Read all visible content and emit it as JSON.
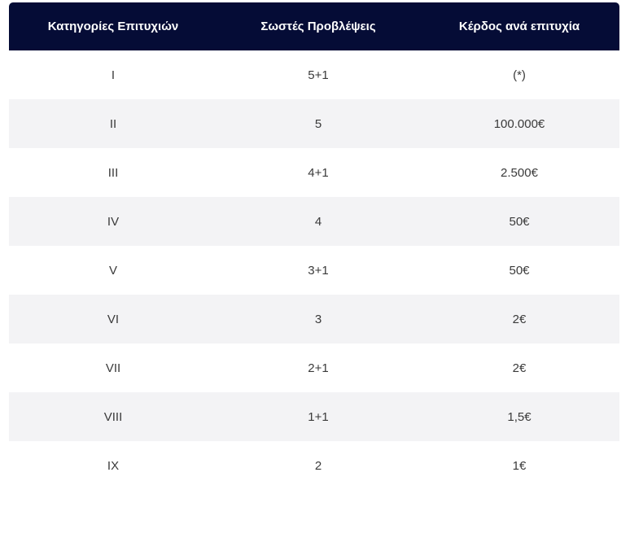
{
  "table": {
    "headers": [
      "Κατηγορίες Επιτυχιών",
      "Σωστές Προβλέψεις",
      "Κέρδος ανά επιτυχία"
    ],
    "rows": [
      {
        "category": "I",
        "predictions": "5+1",
        "prize": "(*)"
      },
      {
        "category": "II",
        "predictions": "5",
        "prize": "100.000€"
      },
      {
        "category": "III",
        "predictions": "4+1",
        "prize": "2.500€"
      },
      {
        "category": "IV",
        "predictions": "4",
        "prize": "50€"
      },
      {
        "category": "V",
        "predictions": "3+1",
        "prize": "50€"
      },
      {
        "category": "VI",
        "predictions": "3",
        "prize": "2€"
      },
      {
        "category": "VII",
        "predictions": "2+1",
        "prize": "2€"
      },
      {
        "category": "VIII",
        "predictions": "1+1",
        "prize": "1,5€"
      },
      {
        "category": "IX",
        "predictions": "2",
        "prize": "1€"
      }
    ]
  },
  "colors": {
    "header_bg": "#050c36",
    "header_text": "#ffffff",
    "row_alt_bg": "#f3f3f5",
    "row_text": "#3a3a3a"
  }
}
